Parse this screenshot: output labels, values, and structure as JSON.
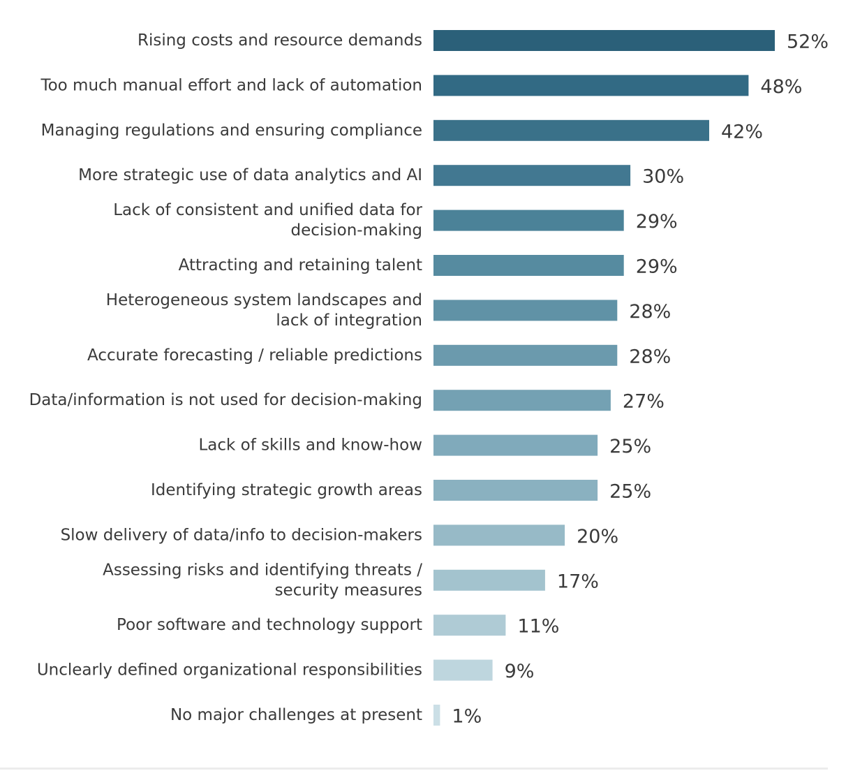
{
  "chart_data": {
    "type": "bar",
    "orientation": "horizontal",
    "title": "",
    "xlabel": "",
    "ylabel": "",
    "xlim": [
      0,
      52
    ],
    "grid": false,
    "legend": "none",
    "value_suffix": "%",
    "categories": [
      [
        "Rising costs and resource demands"
      ],
      [
        "Too much manual effort and lack of automation"
      ],
      [
        "Managing regulations and ensuring compliance"
      ],
      [
        "More strategic use of data analytics and AI"
      ],
      [
        "Lack of consistent and unified data for",
        "decision-making"
      ],
      [
        "Attracting and retaining talent"
      ],
      [
        "Heterogeneous system landscapes and",
        "lack of integration"
      ],
      [
        "Accurate forecasting / reliable predictions"
      ],
      [
        "Data/information is not used for decision-making"
      ],
      [
        "Lack of skills and know-how"
      ],
      [
        "Identifying strategic growth areas"
      ],
      [
        "Slow delivery of data/info to decision-makers"
      ],
      [
        "Assessing risks and identifying threats /",
        "security measures"
      ],
      [
        "Poor software and technology support"
      ],
      [
        "Unclearly defined organizational responsibilities"
      ],
      [
        "No major challenges at present"
      ]
    ],
    "values": [
      52,
      48,
      42,
      30,
      29,
      29,
      28,
      28,
      27,
      25,
      25,
      20,
      17,
      11,
      9,
      1
    ],
    "value_labels": [
      "52%",
      "48%",
      "42%",
      "30%",
      "29%",
      "29%",
      "28%",
      "28%",
      "27%",
      "25%",
      "25%",
      "20%",
      "17%",
      "11%",
      "9%",
      "1%"
    ],
    "bar_colors": [
      "#2b6079",
      "#326a84",
      "#3a7189",
      "#427891",
      "#4b8298",
      "#568ba0",
      "#6092a6",
      "#6b9aad",
      "#74a1b3",
      "#80aabb",
      "#8ab1c0",
      "#97bac7",
      "#a3c3ce",
      "#afcbd5",
      "#bed6de",
      "#cbdfe6"
    ],
    "text_color": "#3a3a3a"
  }
}
